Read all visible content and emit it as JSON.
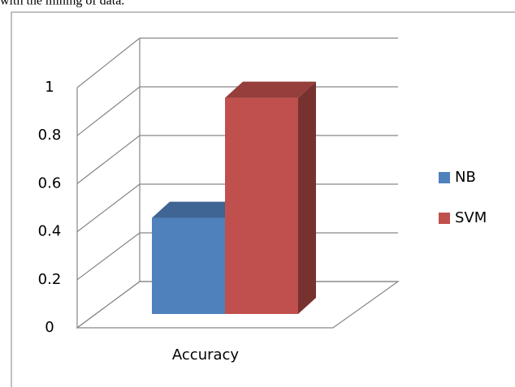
{
  "context_text": "with the mining of data.",
  "chart_data": {
    "type": "bar",
    "categories": [
      "Accuracy"
    ],
    "series": [
      {
        "name": "NB",
        "color": "#4f81bd",
        "values": [
          0.4
        ]
      },
      {
        "name": "SVM",
        "color": "#c0504d",
        "values": [
          0.9
        ]
      }
    ],
    "ylim": [
      0,
      1
    ],
    "yticks": [
      0,
      0.2,
      0.4,
      0.6,
      0.8,
      1
    ],
    "grid": true,
    "legend": "right"
  }
}
